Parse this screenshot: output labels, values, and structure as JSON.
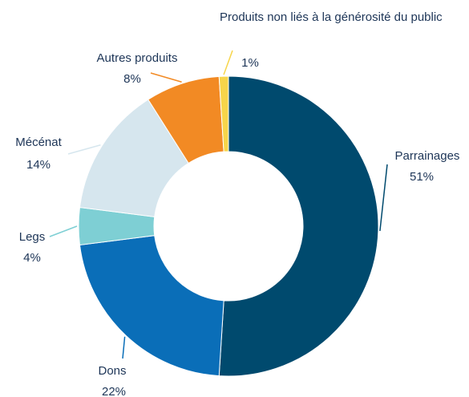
{
  "chart_data": {
    "type": "donut",
    "categories": [
      "Parrainages",
      "Dons",
      "Legs",
      "Mécénat",
      "Autres produits",
      "Produits non liés à la générosité du public"
    ],
    "values": [
      51,
      22,
      4,
      14,
      8,
      1
    ],
    "value_labels": [
      "51%",
      "22%",
      "4%",
      "14%",
      "8%",
      "1%"
    ],
    "colors": [
      "#004a6e",
      "#0a6eb8",
      "#7ecfd4",
      "#d6e6ee",
      "#f28a24",
      "#f7d54a"
    ]
  }
}
